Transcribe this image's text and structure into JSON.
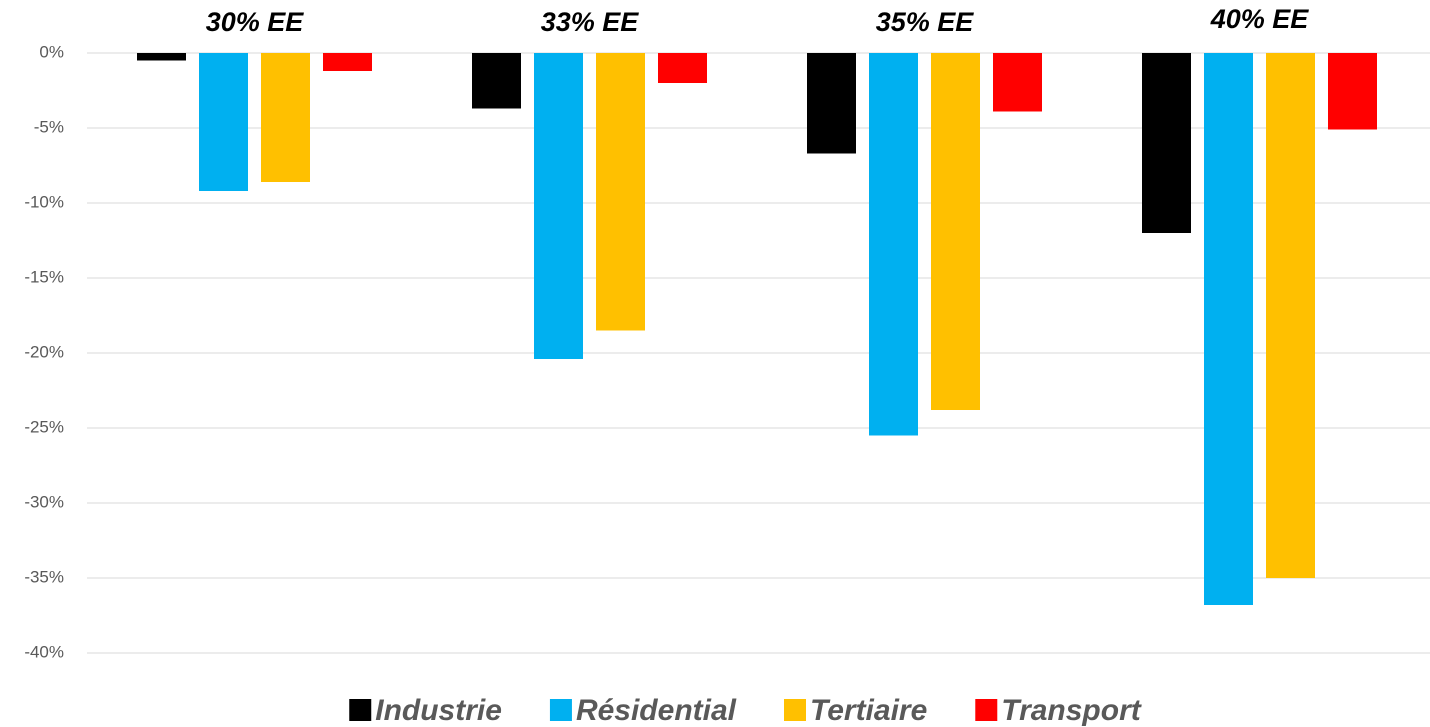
{
  "chart_data": {
    "type": "bar",
    "categories": [
      "30% EE",
      "33% EE",
      "35% EE",
      "40% EE"
    ],
    "series": [
      {
        "name": "Industrie",
        "color": "#000000",
        "values": [
          -0.5,
          -3.7,
          -6.7,
          -12
        ]
      },
      {
        "name": "Résidential",
        "color": "#00b0f0",
        "values": [
          -9.2,
          -20.4,
          -25.5,
          -36.8
        ]
      },
      {
        "name": "Tertiaire",
        "color": "#ffc000",
        "values": [
          -8.6,
          -18.5,
          -23.8,
          -35
        ]
      },
      {
        "name": "Transport",
        "color": "#ff0000",
        "values": [
          -1.2,
          -2,
          -3.9,
          -5.1
        ]
      }
    ],
    "ylim": [
      -40,
      0
    ],
    "yticks": [
      {
        "value": 0,
        "label": "0%"
      },
      {
        "value": -5,
        "label": "-5%"
      },
      {
        "value": -10,
        "label": "-10%"
      },
      {
        "value": -15,
        "label": "-15%"
      },
      {
        "value": -20,
        "label": "-20%"
      },
      {
        "value": -25,
        "label": "-25%"
      },
      {
        "value": -30,
        "label": "-30%"
      },
      {
        "value": -35,
        "label": "-35%"
      },
      {
        "value": -40,
        "label": "-40%"
      }
    ],
    "grid": true,
    "legend": "bottom"
  }
}
